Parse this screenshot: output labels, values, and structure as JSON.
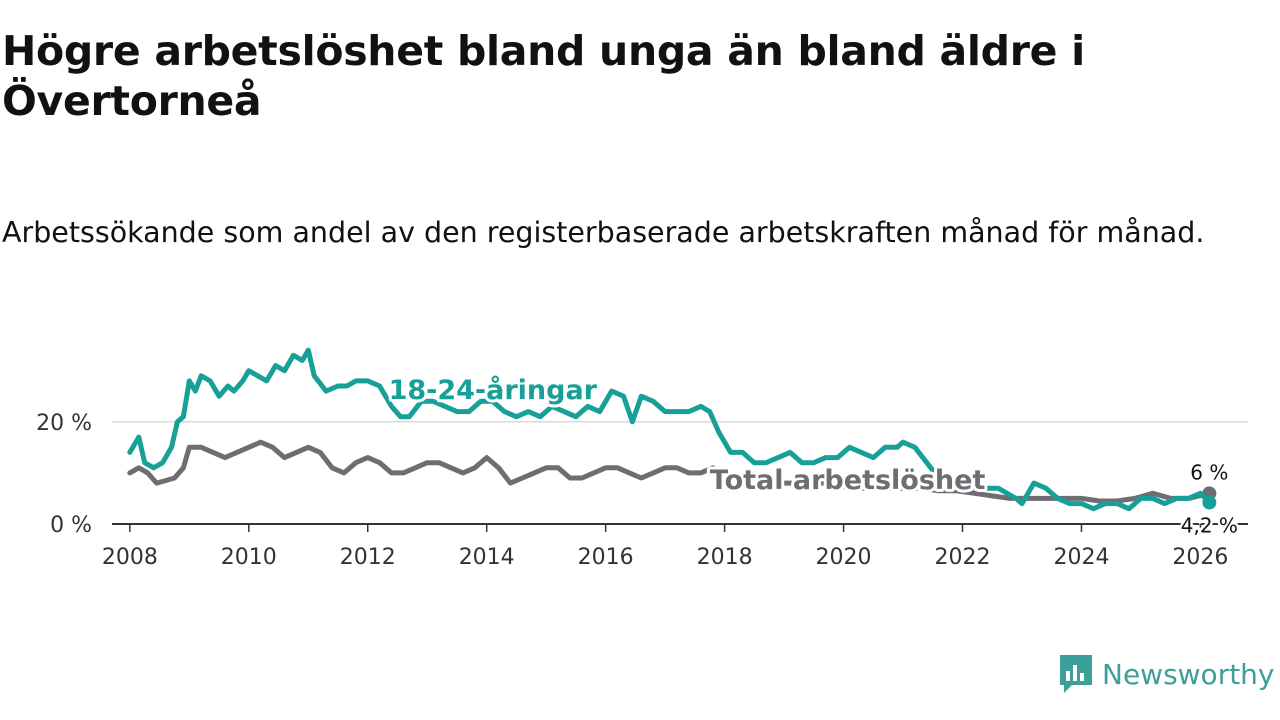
{
  "chart_data": {
    "type": "line",
    "title": "Högre arbetslöshet bland unga än bland äldre i Övertorneå",
    "subtitle": "Arbetssökande som andel av den registerbaserade arbetskraften månad för månad.",
    "xlabel": "",
    "ylabel": "",
    "xlim": [
      2007.7,
      2026.8
    ],
    "ylim": [
      0,
      36
    ],
    "x_ticks": [
      {
        "value": 2008,
        "label": "2008"
      },
      {
        "value": 2010,
        "label": "2010"
      },
      {
        "value": 2012,
        "label": "2012"
      },
      {
        "value": 2014,
        "label": "2014"
      },
      {
        "value": 2016,
        "label": "2016"
      },
      {
        "value": 2018,
        "label": "2018"
      },
      {
        "value": 2020,
        "label": "2020"
      },
      {
        "value": 2022,
        "label": "2022"
      },
      {
        "value": 2024,
        "label": "2024"
      },
      {
        "value": 2026,
        "label": "2026"
      }
    ],
    "y_ticks": [
      {
        "value": 0,
        "label": "0 %"
      },
      {
        "value": 20,
        "label": "20 %"
      }
    ],
    "grid": true,
    "series": [
      {
        "name": "18-24-åringar",
        "label": "18-24-åringar",
        "color": "#16a097",
        "x": [
          2008.0,
          2008.15,
          2008.25,
          2008.4,
          2008.55,
          2008.7,
          2008.8,
          2008.9,
          2009.0,
          2009.1,
          2009.2,
          2009.35,
          2009.5,
          2009.65,
          2009.75,
          2009.9,
          2010.0,
          2010.15,
          2010.3,
          2010.45,
          2010.6,
          2010.75,
          2010.9,
          2011.0,
          2011.1,
          2011.3,
          2011.5,
          2011.65,
          2011.8,
          2012.0,
          2012.2,
          2012.4,
          2012.55,
          2012.7,
          2012.9,
          2013.1,
          2013.3,
          2013.5,
          2013.7,
          2013.9,
          2014.1,
          2014.3,
          2014.5,
          2014.7,
          2014.9,
          2015.1,
          2015.3,
          2015.5,
          2015.7,
          2015.9,
          2016.1,
          2016.3,
          2016.45,
          2016.6,
          2016.8,
          2017.0,
          2017.2,
          2017.4,
          2017.6,
          2017.75,
          2017.9,
          2018.1,
          2018.3,
          2018.5,
          2018.7,
          2018.9,
          2019.1,
          2019.3,
          2019.5,
          2019.7,
          2019.9,
          2020.1,
          2020.3,
          2020.5,
          2020.7,
          2020.9,
          2021.0,
          2021.2,
          2021.4,
          2021.6,
          2021.8,
          2022.0,
          2022.2,
          2022.4,
          2022.6,
          2022.75,
          2022.9,
          2023.0,
          2023.2,
          2023.4,
          2023.6,
          2023.8,
          2024.0,
          2024.2,
          2024.4,
          2024.6,
          2024.8,
          2025.0,
          2025.2,
          2025.4,
          2025.6,
          2025.8,
          2026.0,
          2026.15
        ],
        "values": [
          14,
          17,
          12,
          11,
          12,
          15,
          20,
          21,
          28,
          26,
          29,
          28,
          25,
          27,
          26,
          28,
          30,
          29,
          28,
          31,
          30,
          33,
          32,
          34,
          29,
          26,
          27,
          27,
          28,
          28,
          27,
          23,
          21,
          21,
          24,
          24,
          23,
          22,
          22,
          24,
          24,
          22,
          21,
          22,
          21,
          23,
          22,
          21,
          23,
          22,
          26,
          25,
          20,
          25,
          24,
          22,
          22,
          22,
          23,
          22,
          18,
          14,
          14,
          12,
          12,
          13,
          14,
          12,
          12,
          13,
          13,
          15,
          14,
          13,
          15,
          15,
          16,
          15,
          12,
          9,
          8,
          8,
          7,
          7,
          7,
          6,
          5,
          4,
          8,
          7,
          5,
          4,
          4,
          3,
          4,
          4,
          3,
          5,
          5,
          4,
          5,
          5,
          6,
          4.2
        ]
      },
      {
        "name": "Total arbetslöshet",
        "label": "Total arbetslöshet",
        "color": "#6d6d73",
        "x": [
          2008.0,
          2008.15,
          2008.3,
          2008.45,
          2008.6,
          2008.75,
          2008.9,
          2009.0,
          2009.2,
          2009.4,
          2009.6,
          2009.8,
          2010.0,
          2010.2,
          2010.4,
          2010.6,
          2010.8,
          2011.0,
          2011.2,
          2011.4,
          2011.6,
          2011.8,
          2012.0,
          2012.2,
          2012.4,
          2012.6,
          2012.8,
          2013.0,
          2013.2,
          2013.4,
          2013.6,
          2013.8,
          2014.0,
          2014.2,
          2014.4,
          2014.6,
          2014.8,
          2015.0,
          2015.2,
          2015.4,
          2015.6,
          2015.8,
          2016.0,
          2016.2,
          2016.4,
          2016.6,
          2016.8,
          2017.0,
          2017.2,
          2017.4,
          2017.6,
          2017.8,
          2018.0,
          2018.3,
          2018.6,
          2018.9,
          2019.2,
          2019.5,
          2019.8,
          2020.1,
          2020.4,
          2020.7,
          2021.0,
          2021.3,
          2021.6,
          2021.9,
          2022.2,
          2022.5,
          2022.8,
          2023.1,
          2023.4,
          2023.7,
          2024.0,
          2024.3,
          2024.6,
          2024.9,
          2025.2,
          2025.5,
          2025.8,
          2026.15
        ],
        "values": [
          10,
          11,
          10,
          8,
          8.5,
          9,
          11,
          15,
          15,
          14,
          13,
          14,
          15,
          16,
          15,
          13,
          14,
          15,
          14,
          11,
          10,
          12,
          13,
          12,
          10,
          10,
          11,
          12,
          12,
          11,
          10,
          11,
          13,
          11,
          8,
          9,
          10,
          11,
          11,
          9,
          9,
          10,
          11,
          11,
          10,
          9,
          10,
          11,
          11,
          10,
          10,
          11,
          10,
          9,
          9,
          8,
          8,
          8,
          8,
          7,
          7,
          7,
          7,
          7,
          6.5,
          6.5,
          6,
          5.5,
          5,
          5,
          5,
          5,
          5,
          4.5,
          4.5,
          5,
          6,
          5,
          5,
          6
        ]
      }
    ],
    "end_labels": [
      {
        "series": "Total arbetslöshet",
        "text": "6 %",
        "value": 6
      },
      {
        "series": "18-24-åringar",
        "text": "4,2 %",
        "value": 4.2
      }
    ]
  },
  "brand": {
    "name": "Newsworthy",
    "color": "#3d9e9a",
    "icon": "bar-chart-bubble-icon"
  }
}
